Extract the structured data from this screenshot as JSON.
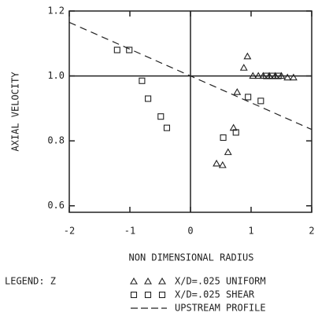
{
  "chart_data": {
    "type": "scatter",
    "xlabel": "NON DIMENSIONAL RADIUS",
    "ylabel": "AXIAL VELOCITY",
    "xlim": [
      -2,
      2
    ],
    "ylim": [
      0.58,
      1.2
    ],
    "xticks": [
      -2,
      -1,
      0,
      1,
      2
    ],
    "yticks": [
      0.6,
      0.8,
      {
        "value": 1.0,
        "label": "1.0"
      },
      1.2
    ],
    "reference_lines": {
      "x": 0,
      "y": 1.0
    },
    "legend_title": "LEGEND: Z",
    "legend": "bottom",
    "color": "#222222",
    "series": [
      {
        "name": "X/D=.025 UNIFORM",
        "marker": "triangle",
        "x": [
          0.43,
          0.53,
          0.62,
          0.71,
          0.77,
          0.88,
          0.94,
          1.03,
          1.12,
          1.2,
          1.3,
          1.4,
          1.5,
          1.6,
          1.7
        ],
        "values": [
          0.73,
          0.725,
          0.765,
          0.84,
          0.95,
          1.025,
          1.06,
          1.0,
          1.0,
          1.0,
          1.0,
          1.0,
          1.0,
          0.995,
          0.995
        ]
      },
      {
        "name": "X/D=.025 SHEAR",
        "marker": "square",
        "x": [
          -1.21,
          -1.01,
          -0.8,
          -0.7,
          -0.49,
          -0.39,
          0.54,
          0.75,
          0.95,
          1.16,
          1.25,
          1.35,
          1.45
        ],
        "values": [
          1.08,
          1.08,
          0.985,
          0.93,
          0.875,
          0.84,
          0.81,
          0.826,
          0.935,
          0.923,
          1.0,
          1.0,
          1.0
        ]
      },
      {
        "name": "UPSTREAM PROFILE",
        "marker": "dashed-line",
        "x": [
          -2,
          2
        ],
        "values": [
          1.165,
          0.835
        ]
      }
    ]
  }
}
